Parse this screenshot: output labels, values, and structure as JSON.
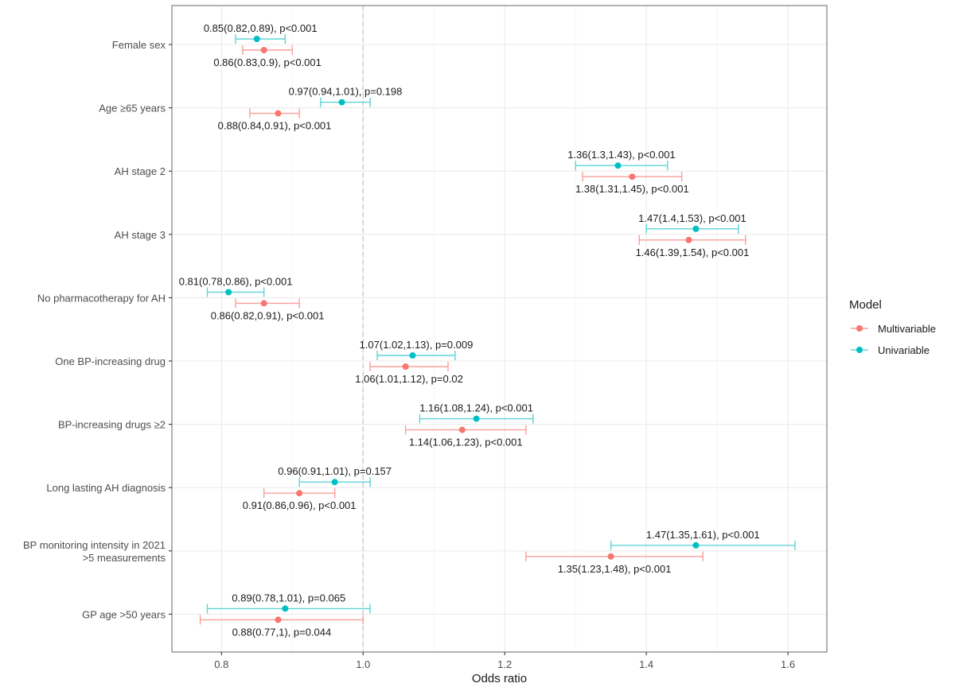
{
  "chart_data": {
    "type": "forest",
    "title": "",
    "xlabel": "Odds ratio",
    "ylabel": "",
    "xlim": [
      0.73,
      1.655
    ],
    "xticks": [
      0.8,
      1.0,
      1.2,
      1.4,
      1.6
    ],
    "xtick_labels": [
      "0.8",
      "1.0",
      "1.2",
      "1.4",
      "1.6"
    ],
    "reference_line": 1.0,
    "grid": true,
    "legend": {
      "title": "Model",
      "position": "right",
      "entries": [
        {
          "name": "Multivariable",
          "color": "#F8766D"
        },
        {
          "name": "Univariable",
          "color": "#00BFC4"
        }
      ]
    },
    "categories": [
      "Female sex",
      "Age ≥65 years",
      "AH stage 2",
      "AH stage 3",
      "No pharmacotherapy for AH",
      "One BP-increasing drug",
      "BP-increasing drugs ≥2",
      "Long lasting AH diagnosis",
      "BP monitoring intensity in 2021\n>5 measurements",
      "GP age >50 years"
    ],
    "series": [
      {
        "name": "Univariable",
        "color": "#00BFC4",
        "points": [
          {
            "or": 0.85,
            "lo": 0.82,
            "hi": 0.89,
            "label": "0.85(0.82,0.89), p<0.001"
          },
          {
            "or": 0.97,
            "lo": 0.94,
            "hi": 1.01,
            "label": "0.97(0.94,1.01), p=0.198"
          },
          {
            "or": 1.36,
            "lo": 1.3,
            "hi": 1.43,
            "label": "1.36(1.3,1.43), p<0.001"
          },
          {
            "or": 1.47,
            "lo": 1.4,
            "hi": 1.53,
            "label": "1.47(1.4,1.53), p<0.001"
          },
          {
            "or": 0.81,
            "lo": 0.78,
            "hi": 0.86,
            "label": "0.81(0.78,0.86), p<0.001"
          },
          {
            "or": 1.07,
            "lo": 1.02,
            "hi": 1.13,
            "label": "1.07(1.02,1.13), p=0.009"
          },
          {
            "or": 1.16,
            "lo": 1.08,
            "hi": 1.24,
            "label": "1.16(1.08,1.24), p<0.001"
          },
          {
            "or": 0.96,
            "lo": 0.91,
            "hi": 1.01,
            "label": "0.96(0.91,1.01), p=0.157"
          },
          {
            "or": 1.47,
            "lo": 1.35,
            "hi": 1.61,
            "label": "1.47(1.35,1.61), p<0.001"
          },
          {
            "or": 0.89,
            "lo": 0.78,
            "hi": 1.01,
            "label": "0.89(0.78,1.01), p=0.065"
          }
        ]
      },
      {
        "name": "Multivariable",
        "color": "#F8766D",
        "points": [
          {
            "or": 0.86,
            "lo": 0.83,
            "hi": 0.9,
            "label": "0.86(0.83,0.9), p<0.001"
          },
          {
            "or": 0.88,
            "lo": 0.84,
            "hi": 0.91,
            "label": "0.88(0.84,0.91), p<0.001"
          },
          {
            "or": 1.38,
            "lo": 1.31,
            "hi": 1.45,
            "label": "1.38(1.31,1.45), p<0.001"
          },
          {
            "or": 1.46,
            "lo": 1.39,
            "hi": 1.54,
            "label": "1.46(1.39,1.54), p<0.001"
          },
          {
            "or": 0.86,
            "lo": 0.82,
            "hi": 0.91,
            "label": "0.86(0.82,0.91), p<0.001"
          },
          {
            "or": 1.06,
            "lo": 1.01,
            "hi": 1.12,
            "label": "1.06(1.01,1.12), p=0.02"
          },
          {
            "or": 1.14,
            "lo": 1.06,
            "hi": 1.23,
            "label": "1.14(1.06,1.23), p<0.001"
          },
          {
            "or": 0.91,
            "lo": 0.86,
            "hi": 0.96,
            "label": "0.91(0.86,0.96), p<0.001"
          },
          {
            "or": 1.35,
            "lo": 1.23,
            "hi": 1.48,
            "label": "1.35(1.23,1.48), p<0.001"
          },
          {
            "or": 0.88,
            "lo": 0.77,
            "hi": 1.0,
            "label": "0.88(0.77,1), p=0.044"
          }
        ]
      }
    ]
  }
}
